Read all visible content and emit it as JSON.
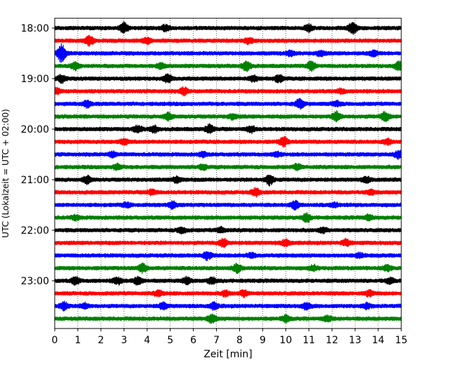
{
  "chart_data": {
    "type": "line",
    "title": "",
    "xlabel": "Zeit  [min]",
    "ylabel": "UTC (Lokalzeit = UTC + 02:00)",
    "xlim": [
      0,
      15
    ],
    "x_ticks": [
      0,
      1,
      2,
      3,
      4,
      5,
      6,
      7,
      8,
      9,
      10,
      11,
      12,
      13,
      14,
      15
    ],
    "x_tick_labels": [
      "0",
      "1",
      "2",
      "3",
      "4",
      "5",
      "6",
      "7",
      "8",
      "9",
      "10",
      "11",
      "12",
      "13",
      "14",
      "15"
    ],
    "y_tick_labels": [
      "18:00",
      "19:00",
      "20:00",
      "21:00",
      "22:00",
      "23:00"
    ],
    "grid": "vertical dotted",
    "trace_colors": [
      "#000000",
      "#ff0000",
      "#0000ff",
      "#008000"
    ],
    "traces": [
      {
        "start": "18:00",
        "color": "#000000",
        "events": [
          [
            3.0,
            1.0
          ],
          [
            4.8,
            0.6
          ],
          [
            11.0,
            0.6
          ],
          [
            12.9,
            1.2
          ]
        ]
      },
      {
        "start": "18:15",
        "color": "#ff0000",
        "events": [
          [
            1.5,
            0.9
          ],
          [
            4.0,
            0.5
          ],
          [
            8.4,
            0.5
          ]
        ]
      },
      {
        "start": "18:30",
        "color": "#0000ff",
        "events": [
          [
            0.3,
            1.8
          ],
          [
            10.2,
            0.5
          ],
          [
            11.5,
            0.5
          ],
          [
            13.8,
            0.5
          ]
        ]
      },
      {
        "start": "18:45",
        "color": "#008000",
        "events": [
          [
            0.9,
            0.7
          ],
          [
            4.6,
            0.5
          ],
          [
            8.3,
            1.0
          ],
          [
            11.1,
            0.8
          ],
          [
            14.9,
            0.8
          ]
        ]
      },
      {
        "start": "19:00",
        "color": "#000000",
        "events": [
          [
            0.3,
            0.7
          ],
          [
            4.9,
            0.8
          ],
          [
            8.6,
            0.6
          ],
          [
            9.7,
            0.7
          ]
        ]
      },
      {
        "start": "19:15",
        "color": "#ff0000",
        "events": [
          [
            0.1,
            0.5
          ],
          [
            5.6,
            0.7
          ],
          [
            12.4,
            0.4
          ]
        ]
      },
      {
        "start": "19:30",
        "color": "#0000ff",
        "events": [
          [
            1.4,
            0.6
          ],
          [
            10.6,
            0.9
          ],
          [
            12.2,
            0.5
          ]
        ]
      },
      {
        "start": "19:45",
        "color": "#008000",
        "events": [
          [
            4.9,
            0.7
          ],
          [
            7.7,
            0.5
          ],
          [
            12.2,
            0.9
          ],
          [
            14.3,
            0.9
          ]
        ]
      },
      {
        "start": "20:00",
        "color": "#000000",
        "events": [
          [
            3.6,
            0.6
          ],
          [
            4.3,
            0.6
          ],
          [
            6.7,
            0.8
          ],
          [
            8.5,
            0.6
          ]
        ]
      },
      {
        "start": "20:15",
        "color": "#ff0000",
        "events": [
          [
            3.0,
            0.5
          ],
          [
            9.9,
            0.9
          ],
          [
            14.4,
            0.5
          ]
        ]
      },
      {
        "start": "20:30",
        "color": "#0000ff",
        "events": [
          [
            2.5,
            0.5
          ],
          [
            6.4,
            0.4
          ],
          [
            9.6,
            0.4
          ],
          [
            14.9,
            0.8
          ]
        ]
      },
      {
        "start": "20:45",
        "color": "#008000",
        "events": [
          [
            2.7,
            0.5
          ],
          [
            6.4,
            0.5
          ],
          [
            10.5,
            0.5
          ]
        ]
      },
      {
        "start": "21:00",
        "color": "#000000",
        "events": [
          [
            1.4,
            0.7
          ],
          [
            5.3,
            0.6
          ],
          [
            9.3,
            1.0
          ],
          [
            13.5,
            0.5
          ]
        ]
      },
      {
        "start": "21:15",
        "color": "#ff0000",
        "events": [
          [
            4.2,
            0.5
          ],
          [
            8.7,
            0.7
          ],
          [
            13.7,
            0.4
          ]
        ]
      },
      {
        "start": "21:30",
        "color": "#0000ff",
        "events": [
          [
            3.1,
            0.4
          ],
          [
            5.1,
            0.7
          ],
          [
            10.4,
            0.8
          ],
          [
            12.1,
            0.4
          ]
        ]
      },
      {
        "start": "21:45",
        "color": "#008000",
        "events": [
          [
            0.9,
            0.4
          ],
          [
            10.9,
            0.8
          ],
          [
            13.6,
            0.5
          ]
        ]
      },
      {
        "start": "22:00",
        "color": "#000000",
        "events": [
          [
            5.5,
            0.6
          ],
          [
            7.2,
            0.5
          ],
          [
            11.6,
            0.5
          ]
        ]
      },
      {
        "start": "22:15",
        "color": "#ff0000",
        "events": [
          [
            7.3,
            0.8
          ],
          [
            10.0,
            0.6
          ],
          [
            12.6,
            0.6
          ]
        ]
      },
      {
        "start": "22:30",
        "color": "#0000ff",
        "events": [
          [
            6.6,
            0.8
          ],
          [
            8.5,
            0.4
          ],
          [
            13.2,
            0.4
          ]
        ]
      },
      {
        "start": "22:45",
        "color": "#008000",
        "events": [
          [
            3.8,
            0.8
          ],
          [
            7.9,
            0.8
          ],
          [
            11.2,
            0.5
          ],
          [
            14.4,
            0.5
          ]
        ]
      },
      {
        "start": "23:00",
        "color": "#000000",
        "events": [
          [
            0.9,
            0.7
          ],
          [
            2.7,
            0.7
          ],
          [
            3.6,
            0.8
          ],
          [
            5.7,
            0.6
          ],
          [
            6.8,
            0.6
          ],
          [
            14.5,
            0.5
          ]
        ]
      },
      {
        "start": "23:15",
        "color": "#ff0000",
        "events": [
          [
            4.5,
            0.5
          ],
          [
            7.4,
            0.5
          ],
          [
            8.2,
            0.6
          ],
          [
            13.6,
            0.5
          ]
        ]
      },
      {
        "start": "23:30",
        "color": "#0000ff",
        "events": [
          [
            0.4,
            0.8
          ],
          [
            1.3,
            0.5
          ],
          [
            4.7,
            0.6
          ],
          [
            6.9,
            0.6
          ],
          [
            10.9,
            0.6
          ],
          [
            13.5,
            0.5
          ]
        ]
      },
      {
        "start": "23:45",
        "color": "#008000",
        "events": [
          [
            6.8,
            0.8
          ],
          [
            10.0,
            0.6
          ],
          [
            11.8,
            0.5
          ]
        ]
      }
    ]
  }
}
